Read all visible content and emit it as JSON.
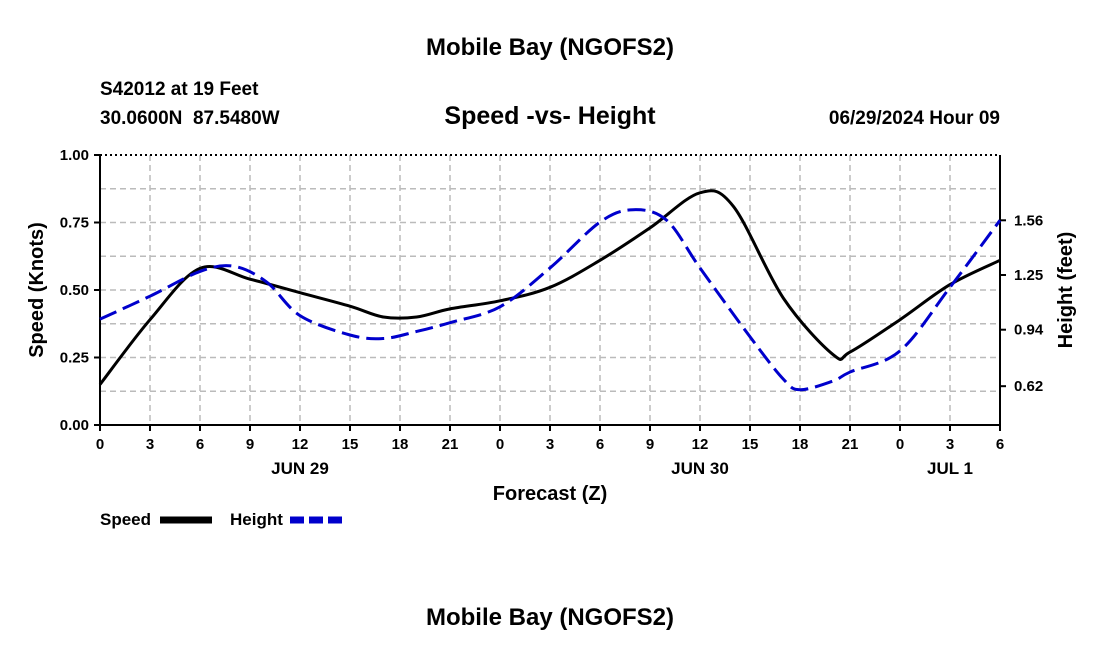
{
  "header": {
    "title": "Mobile Bay (NGOFS2)",
    "station_line1": "S42012 at 19 Feet",
    "station_line2": "30.0600N  87.5480W",
    "date": "06/29/2024 Hour 09",
    "footer_title": "Mobile Bay (NGOFS2)"
  },
  "chart_data": {
    "type": "line",
    "title": "Speed -vs- Height",
    "xlabel": "Forecast (Z)",
    "ylabel_left": "Speed (Knots)",
    "ylabel_right": "Height (feet)",
    "x_unit": "forecast hour",
    "xlim": [
      0,
      54
    ],
    "x_tick_values": [
      0,
      3,
      6,
      9,
      12,
      15,
      18,
      21,
      24,
      27,
      30,
      33,
      36,
      39,
      42,
      45,
      48,
      51,
      54
    ],
    "x_tick_labels": [
      "0",
      "3",
      "6",
      "9",
      "12",
      "15",
      "18",
      "21",
      "0",
      "3",
      "6",
      "9",
      "12",
      "15",
      "18",
      "21",
      "0",
      "3",
      "6"
    ],
    "date_labels": [
      {
        "x": 12,
        "text": "JUN 29"
      },
      {
        "x": 36,
        "text": "JUN 30"
      },
      {
        "x": 51,
        "text": "JUL 1"
      }
    ],
    "ylim_left": [
      0,
      1
    ],
    "y_left_ticks": [
      "0.00",
      "0.25",
      "0.50",
      "0.75",
      "1.00"
    ],
    "y_left_tick_values": [
      0,
      0.25,
      0.5,
      0.75,
      1.0
    ],
    "ylim_right": [
      0.4,
      1.93
    ],
    "y_right_ticks": [
      "0.62",
      "0.94",
      "1.25",
      "1.56"
    ],
    "y_right_tick_values": [
      0.62,
      0.94,
      1.25,
      1.56
    ],
    "grid": true,
    "legend_position": "bottom-left",
    "series": [
      {
        "name": "Speed",
        "axis": "left",
        "color": "#000000",
        "dashed": false,
        "x": [
          0,
          3,
          6,
          9,
          12,
          15,
          17,
          19,
          21,
          24,
          27,
          30,
          33,
          36,
          38,
          41,
          44,
          45,
          48,
          51,
          54
        ],
        "y": [
          0.15,
          0.39,
          0.58,
          0.54,
          0.49,
          0.44,
          0.4,
          0.4,
          0.43,
          0.46,
          0.51,
          0.61,
          0.73,
          0.86,
          0.81,
          0.47,
          0.26,
          0.27,
          0.39,
          0.52,
          0.61
        ]
      },
      {
        "name": "Height",
        "axis": "right",
        "color": "#0000cc",
        "dashed": true,
        "x": [
          0,
          3,
          6,
          8,
          10,
          12,
          15,
          17,
          19,
          21,
          24,
          27,
          30,
          32,
          34,
          36,
          39,
          41,
          42,
          44,
          45,
          48,
          51,
          54
        ],
        "y": [
          1.0,
          1.13,
          1.27,
          1.3,
          1.21,
          1.02,
          0.91,
          0.89,
          0.93,
          0.98,
          1.07,
          1.29,
          1.55,
          1.62,
          1.56,
          1.29,
          0.9,
          0.66,
          0.6,
          0.65,
          0.7,
          0.82,
          1.18,
          1.56
        ]
      }
    ]
  }
}
